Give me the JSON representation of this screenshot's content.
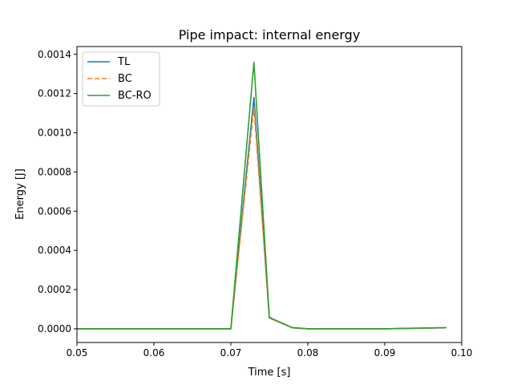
{
  "chart_data": {
    "type": "line",
    "title": "Pipe impact: internal energy",
    "xlabel": "Time [s]",
    "ylabel": "Energy [J]",
    "xlim": [
      0.05,
      0.1
    ],
    "ylim": [
      -7e-05,
      0.00144
    ],
    "xticks": [
      0.05,
      0.06,
      0.07,
      0.08,
      0.09,
      0.1
    ],
    "xtick_labels": [
      "0.05",
      "0.06",
      "0.07",
      "0.08",
      "0.09",
      "0.10"
    ],
    "yticks": [
      0.0,
      0.0002,
      0.0004,
      0.0006,
      0.0008,
      0.001,
      0.0012,
      0.0014
    ],
    "ytick_labels": [
      "0.0000",
      "0.0002",
      "0.0004",
      "0.0006",
      "0.0008",
      "0.0010",
      "0.0012",
      "0.0014"
    ],
    "grid": false,
    "legend_position": "top-left",
    "series": [
      {
        "name": "TL",
        "color": "#1f77b4",
        "dash": "solid",
        "x": [
          0.05,
          0.06,
          0.07,
          0.073,
          0.075,
          0.078,
          0.08,
          0.09,
          0.098
        ],
        "y": [
          0.0,
          0.0,
          0.0,
          0.00118,
          5.5e-05,
          5e-06,
          0.0,
          0.0,
          5e-06
        ]
      },
      {
        "name": "BC",
        "color": "#ff7f0e",
        "dash": "dashed",
        "x": [
          0.05,
          0.06,
          0.07,
          0.073,
          0.075,
          0.078,
          0.08,
          0.09,
          0.098
        ],
        "y": [
          0.0,
          0.0,
          0.0,
          0.00113,
          5.5e-05,
          5e-06,
          0.0,
          0.0,
          5e-06
        ]
      },
      {
        "name": "BC-RO",
        "color": "#2ca02c",
        "dash": "solid",
        "x": [
          0.05,
          0.06,
          0.07,
          0.073,
          0.075,
          0.078,
          0.08,
          0.09,
          0.098
        ],
        "y": [
          0.0,
          0.0,
          0.0,
          0.00136,
          5.8e-05,
          6e-06,
          0.0,
          0.0,
          6e-06
        ]
      }
    ]
  }
}
